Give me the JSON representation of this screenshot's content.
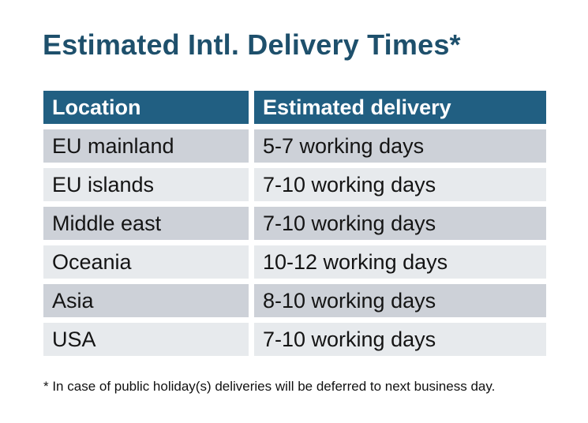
{
  "page": {
    "title": "Estimated Intl. Delivery Times*",
    "footnote": "* In case of public holiday(s) deliveries will be deferred to next business day."
  },
  "table": {
    "columns": [
      "Location",
      "Estimated delivery"
    ],
    "rows": [
      {
        "location": "EU mainland",
        "delivery": "5-7 working days"
      },
      {
        "location": "EU islands",
        "delivery": "7-10 working days"
      },
      {
        "location": "Middle east",
        "delivery": "7-10 working days"
      },
      {
        "location": "Oceania",
        "delivery": "10-12 working days"
      },
      {
        "location": "Asia",
        "delivery": "8-10 working days"
      },
      {
        "location": "USA",
        "delivery": "7-10 working days"
      }
    ]
  },
  "colors": {
    "title_text": "#1e506c",
    "header_bg": "#215f82",
    "header_text": "#ffffff",
    "row_odd_bg": "#cdd1d8",
    "row_even_bg": "#e7eaed",
    "row_text": "#141414",
    "footnote_text": "#111111",
    "page_bg": "#ffffff"
  }
}
